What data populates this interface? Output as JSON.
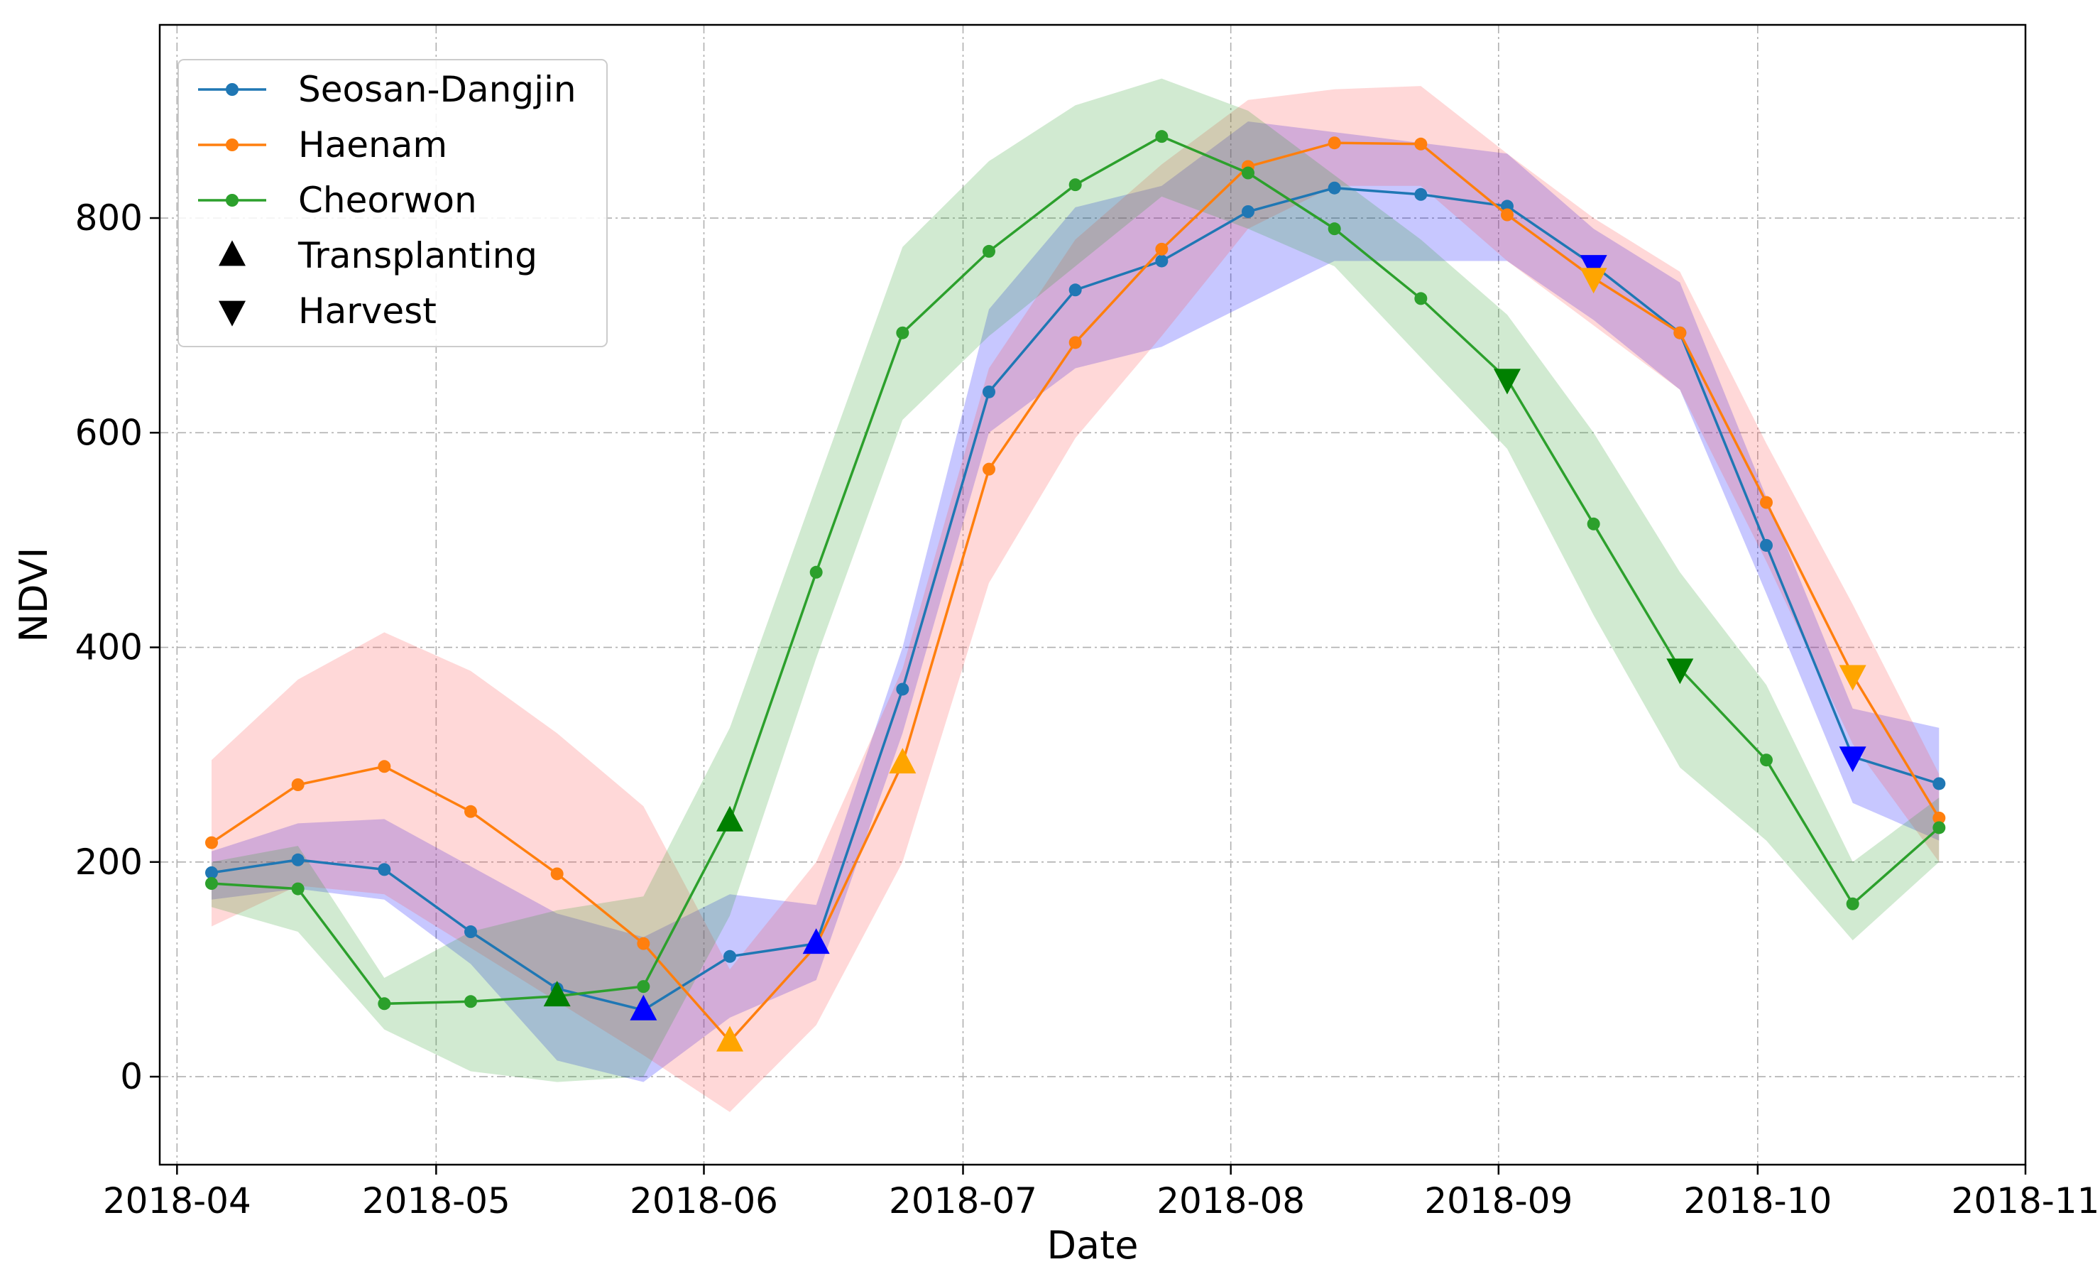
{
  "chart_data": {
    "type": "line",
    "title": "",
    "xlabel": "Date",
    "ylabel": "NDVI",
    "xlim": [
      "2018-03-30",
      "2018-11-01"
    ],
    "ylim": [
      -82,
      980
    ],
    "grid": true,
    "legend_position": "top-left",
    "x_ticks": [
      "2018-04-01",
      "2018-05-01",
      "2018-06-01",
      "2018-07-01",
      "2018-08-01",
      "2018-09-01",
      "2018-10-01",
      "2018-11-01"
    ],
    "x_tick_labels": [
      "2018-04",
      "2018-05",
      "2018-06",
      "2018-07",
      "2018-08",
      "2018-09",
      "2018-10",
      "2018-11"
    ],
    "y_ticks": [
      0,
      200,
      400,
      600,
      800
    ],
    "y_tick_labels": [
      "0",
      "200",
      "400",
      "600",
      "800"
    ],
    "dates": [
      "2018-04-05",
      "2018-04-15",
      "2018-04-25",
      "2018-05-05",
      "2018-05-15",
      "2018-05-25",
      "2018-06-04",
      "2018-06-14",
      "2018-06-24",
      "2018-07-04",
      "2018-07-14",
      "2018-07-24",
      "2018-08-03",
      "2018-08-13",
      "2018-08-23",
      "2018-09-02",
      "2018-09-12",
      "2018-09-22",
      "2018-10-02",
      "2018-10-12",
      "2018-10-22"
    ],
    "series": [
      {
        "name": "Seosan-Dangjin",
        "color": "#1f77b4",
        "band_color": "#0000ff",
        "values": [
          190,
          202,
          193,
          135,
          82,
          62,
          112,
          124,
          361,
          638,
          733,
          760,
          806,
          828,
          822,
          811,
          756,
          693,
          495,
          298,
          273
        ],
        "lower": [
          165,
          175,
          165,
          105,
          15,
          -5,
          55,
          90,
          320,
          600,
          660,
          680,
          720,
          760,
          760,
          760,
          705,
          640,
          450,
          255,
          220
        ],
        "upper": [
          210,
          236,
          240,
          196,
          152,
          130,
          170,
          160,
          400,
          715,
          810,
          830,
          890,
          880,
          870,
          860,
          790,
          740,
          540,
          343,
          325
        ]
      },
      {
        "name": "Haenam",
        "color": "#ff7f0e",
        "band_color": "#ff4d4d",
        "values": [
          218,
          272,
          289,
          247,
          189,
          124,
          33,
          122,
          292,
          566,
          684,
          771,
          848,
          870,
          869,
          803,
          744,
          693,
          535,
          374,
          241
        ],
        "lower": [
          140,
          178,
          170,
          120,
          70,
          20,
          -33,
          48,
          200,
          460,
          595,
          690,
          790,
          830,
          830,
          760,
          700,
          640,
          480,
          310,
          200
        ],
        "upper": [
          295,
          370,
          414,
          378,
          320,
          252,
          100,
          200,
          380,
          660,
          780,
          850,
          910,
          920,
          923,
          860,
          800,
          750,
          590,
          440,
          282
        ]
      },
      {
        "name": "Cheorwon",
        "color": "#2ca02c",
        "band_color": "#2ca02c",
        "values": [
          180,
          175,
          68,
          70,
          75,
          84,
          238,
          470,
          693,
          769,
          831,
          876,
          842,
          790,
          725,
          650,
          515,
          380,
          295,
          161,
          232
        ],
        "lower": [
          158,
          135,
          44,
          5,
          -5,
          0,
          150,
          390,
          612,
          690,
          755,
          820,
          790,
          755,
          670,
          585,
          430,
          288,
          220,
          127,
          200
        ],
        "upper": [
          200,
          215,
          92,
          135,
          155,
          168,
          325,
          550,
          773,
          853,
          905,
          930,
          900,
          840,
          780,
          710,
          600,
          470,
          365,
          200,
          260
        ]
      }
    ],
    "events": {
      "transplanting": [
        {
          "series": "Cheorwon",
          "x": "2018-05-15",
          "y": 75,
          "color": "#008000"
        },
        {
          "series": "Seosan-Dangjin",
          "x": "2018-05-25",
          "y": 62,
          "color": "#0000ff"
        },
        {
          "series": "Haenam",
          "x": "2018-06-04",
          "y": 33,
          "color": "#ffa500"
        },
        {
          "series": "Cheorwon",
          "x": "2018-06-04",
          "y": 238,
          "color": "#008000"
        },
        {
          "series": "Seosan-Dangjin",
          "x": "2018-06-14",
          "y": 124,
          "color": "#0000ff"
        },
        {
          "series": "Haenam",
          "x": "2018-06-24",
          "y": 292,
          "color": "#ffa500"
        }
      ],
      "harvest": [
        {
          "series": "Cheorwon",
          "x": "2018-09-02",
          "y": 650,
          "color": "#008000"
        },
        {
          "series": "Seosan-Dangjin",
          "x": "2018-09-12",
          "y": 756,
          "color": "#0000ff"
        },
        {
          "series": "Haenam",
          "x": "2018-09-12",
          "y": 744,
          "color": "#ffa500"
        },
        {
          "series": "Cheorwon",
          "x": "2018-09-22",
          "y": 380,
          "color": "#008000"
        },
        {
          "series": "Seosan-Dangjin",
          "x": "2018-10-12",
          "y": 298,
          "color": "#0000ff"
        },
        {
          "series": "Haenam",
          "x": "2018-10-12",
          "y": 374,
          "color": "#ffa500"
        }
      ]
    },
    "legend": [
      {
        "label": "Seosan-Dangjin",
        "kind": "line",
        "color": "#1f77b4"
      },
      {
        "label": "Haenam",
        "kind": "line",
        "color": "#ff7f0e"
      },
      {
        "label": "Cheorwon",
        "kind": "line",
        "color": "#2ca02c"
      },
      {
        "label": "Transplanting",
        "kind": "triangle-up",
        "color": "#000000"
      },
      {
        "label": "Harvest",
        "kind": "triangle-down",
        "color": "#000000"
      }
    ]
  }
}
